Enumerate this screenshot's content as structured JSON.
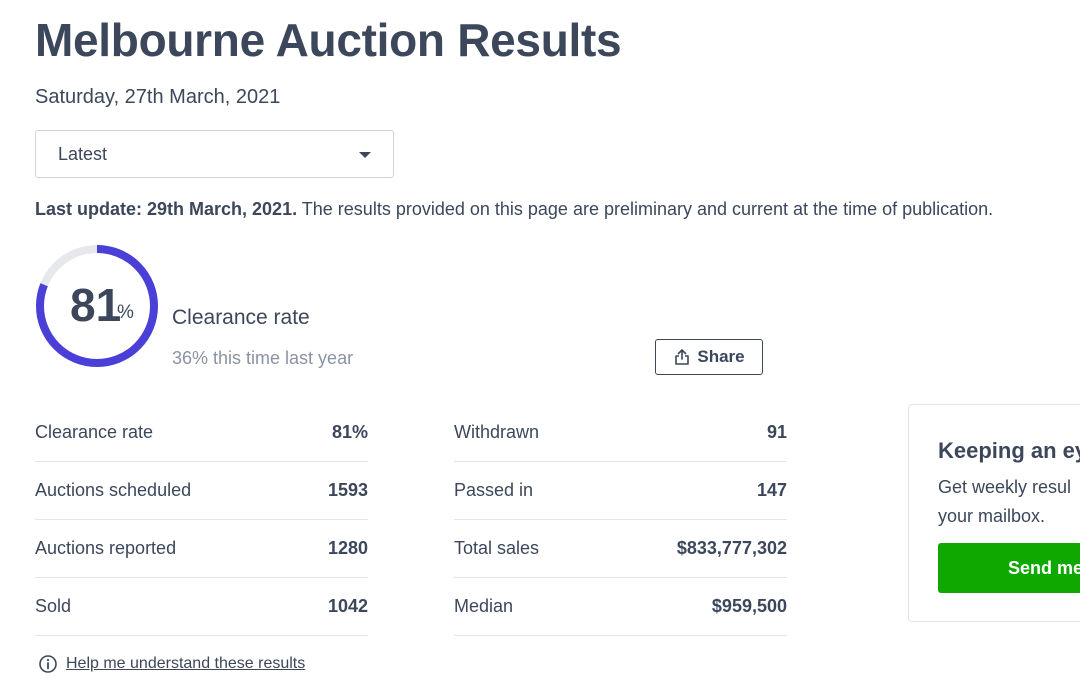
{
  "page": {
    "title": "Melbourne Auction Results",
    "date": "Saturday, 27th March, 2021"
  },
  "filter": {
    "selected": "Latest"
  },
  "update": {
    "label": "Last update: 29th March, 2021.",
    "note": "The results provided on this page are preliminary and current at the time of publication."
  },
  "clearance": {
    "value": 81,
    "value_text": "81",
    "unit": "%",
    "label": "Clearance rate",
    "last_year": "36% this time last year",
    "ring_color": "#4a3fd6",
    "track_color": "#e6e8ec"
  },
  "share": {
    "label": "Share",
    "icon": "share-icon"
  },
  "stats_left": [
    {
      "label": "Clearance rate",
      "value": "81%"
    },
    {
      "label": "Auctions scheduled",
      "value": "1593"
    },
    {
      "label": "Auctions reported",
      "value": "1280"
    },
    {
      "label": "Sold",
      "value": "1042"
    }
  ],
  "stats_right": [
    {
      "label": "Withdrawn",
      "value": "91"
    },
    {
      "label": "Passed in",
      "value": "147"
    },
    {
      "label": "Total sales",
      "value": "$833,777,302"
    },
    {
      "label": "Median",
      "value": "$959,500"
    }
  ],
  "help": {
    "label": "Help me understand these results",
    "icon": "info-icon"
  },
  "promo": {
    "title": "Keeping an ey",
    "body_line1": "Get weekly resul",
    "body_line2": "your mailbox.",
    "button": "Send me",
    "button_color": "#0ea800"
  }
}
